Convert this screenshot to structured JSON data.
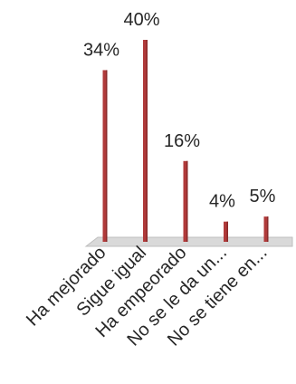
{
  "chart_data": {
    "type": "bar",
    "categories": [
      "Ha mejorado",
      "Sigue igual",
      "Ha empeorado",
      "No se le da un...",
      "No se tiene en..."
    ],
    "values": [
      34,
      40,
      16,
      4,
      5
    ],
    "data_labels": [
      "34%",
      "40%",
      "16%",
      "4%",
      "5%"
    ],
    "ylim": [
      0,
      40
    ],
    "grid": false,
    "legend": "none",
    "colors": {
      "bar": "#b03a3a",
      "bar_dark": "#8a2a2a",
      "floor": "#d9d9d9",
      "floor_edge": "#bfbfbf",
      "text": "#262626"
    }
  }
}
